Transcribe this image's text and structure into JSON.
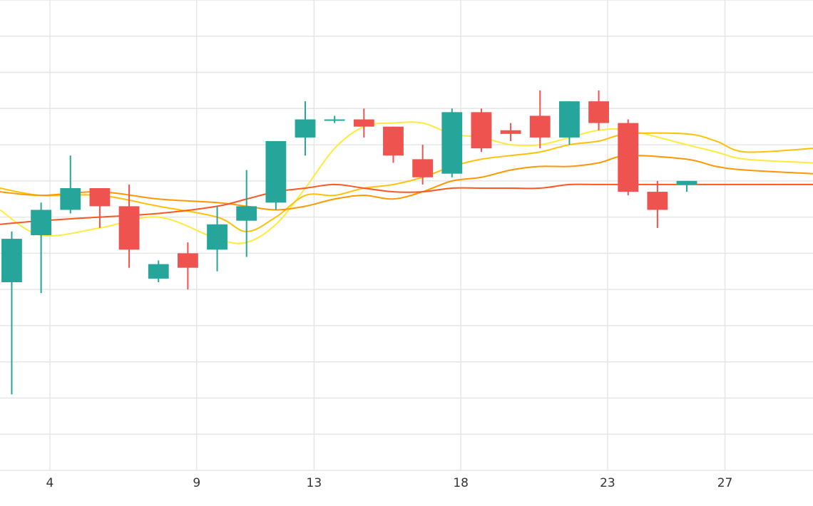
{
  "chart_data": {
    "type": "candlestick",
    "x_tick_labels": [
      "4",
      "9",
      "13",
      "18",
      "23",
      "27"
    ],
    "x_ticks": [
      4,
      9,
      13,
      18,
      23,
      27
    ],
    "xlim": [
      2.3,
      30.0
    ],
    "ylim": [
      0,
      13
    ],
    "grid": true,
    "legend": "none",
    "colors": {
      "up": "#26a69a",
      "down": "#ef5350",
      "grid": "#e6e6e6",
      "axis_text": "#333333"
    },
    "candles": [
      {
        "x": 2.7,
        "open": 5.2,
        "high": 6.6,
        "low": 2.1,
        "close": 6.4
      },
      {
        "x": 3.7,
        "open": 6.5,
        "high": 7.4,
        "low": 4.9,
        "close": 7.2
      },
      {
        "x": 4.7,
        "open": 7.2,
        "high": 8.7,
        "low": 7.1,
        "close": 7.8
      },
      {
        "x": 5.7,
        "open": 7.8,
        "high": 7.8,
        "low": 6.7,
        "close": 7.3
      },
      {
        "x": 6.7,
        "open": 7.3,
        "high": 7.9,
        "low": 5.6,
        "close": 6.1
      },
      {
        "x": 7.7,
        "open": 5.3,
        "high": 5.8,
        "low": 5.2,
        "close": 5.7
      },
      {
        "x": 8.7,
        "open": 6.0,
        "high": 6.3,
        "low": 5.0,
        "close": 5.6
      },
      {
        "x": 9.7,
        "open": 6.1,
        "high": 7.3,
        "low": 5.5,
        "close": 6.8
      },
      {
        "x": 10.7,
        "open": 6.9,
        "high": 8.3,
        "low": 5.9,
        "close": 7.3
      },
      {
        "x": 11.7,
        "open": 7.4,
        "high": 9.1,
        "low": 7.2,
        "close": 9.1
      },
      {
        "x": 12.7,
        "open": 9.2,
        "high": 10.2,
        "low": 8.7,
        "close": 9.7
      },
      {
        "x": 13.7,
        "open": 9.7,
        "high": 9.8,
        "low": 9.6,
        "close": 9.7
      },
      {
        "x": 14.7,
        "open": 9.7,
        "high": 10.0,
        "low": 9.2,
        "close": 9.5
      },
      {
        "x": 15.7,
        "open": 9.5,
        "high": 9.5,
        "low": 8.5,
        "close": 8.7
      },
      {
        "x": 16.7,
        "open": 8.6,
        "high": 9.0,
        "low": 7.9,
        "close": 8.1
      },
      {
        "x": 17.7,
        "open": 8.2,
        "high": 10.0,
        "low": 8.1,
        "close": 9.9
      },
      {
        "x": 18.7,
        "open": 9.9,
        "high": 10.0,
        "low": 8.8,
        "close": 8.9
      },
      {
        "x": 19.7,
        "open": 9.4,
        "high": 9.6,
        "low": 9.1,
        "close": 9.3
      },
      {
        "x": 20.7,
        "open": 9.8,
        "high": 10.5,
        "low": 8.9,
        "close": 9.2
      },
      {
        "x": 21.7,
        "open": 9.2,
        "high": 10.2,
        "low": 9.0,
        "close": 10.2
      },
      {
        "x": 22.7,
        "open": 10.2,
        "high": 10.5,
        "low": 9.4,
        "close": 9.6
      },
      {
        "x": 23.7,
        "open": 9.6,
        "high": 9.7,
        "low": 7.6,
        "close": 7.7
      },
      {
        "x": 24.7,
        "open": 7.7,
        "high": 8.0,
        "low": 6.7,
        "close": 7.2
      },
      {
        "x": 25.7,
        "open": 7.9,
        "high": 8.0,
        "low": 7.7,
        "close": 8.0
      }
    ],
    "series": [
      {
        "color": "#ffeb3b",
        "x": [
          2.3,
          3.7,
          5.7,
          7.7,
          9.7,
          10.7,
          11.7,
          12.7,
          13.7,
          14.7,
          15.7,
          16.7,
          17.7,
          18.7,
          19.7,
          20.7,
          21.7,
          22.7,
          23.7,
          25.7,
          26.7,
          27.7,
          30.0
        ],
        "y": [
          7.2,
          6.5,
          6.7,
          7.0,
          6.4,
          6.3,
          6.8,
          7.8,
          8.9,
          9.5,
          9.6,
          9.6,
          9.3,
          9.2,
          9.0,
          9.0,
          9.2,
          9.4,
          9.4,
          9.0,
          8.8,
          8.6,
          8.5
        ]
      },
      {
        "color": "#ffc107",
        "x": [
          2.3,
          3.7,
          5.7,
          7.7,
          9.7,
          10.7,
          11.7,
          12.7,
          13.7,
          14.7,
          15.7,
          16.7,
          17.7,
          18.7,
          19.7,
          20.7,
          21.7,
          22.7,
          23.7,
          25.7,
          26.7,
          27.7,
          30.0
        ],
        "y": [
          7.8,
          7.6,
          7.6,
          7.3,
          7.0,
          6.6,
          7.0,
          7.6,
          7.6,
          7.8,
          7.9,
          8.1,
          8.4,
          8.6,
          8.7,
          8.8,
          9.0,
          9.1,
          9.3,
          9.3,
          9.1,
          8.8,
          8.9
        ]
      },
      {
        "color": "#ff9800",
        "x": [
          2.3,
          3.7,
          5.7,
          7.7,
          9.7,
          10.7,
          11.7,
          12.7,
          13.7,
          14.7,
          15.7,
          16.7,
          17.7,
          18.7,
          19.7,
          20.7,
          21.7,
          22.7,
          23.7,
          25.7,
          26.7,
          27.7,
          30.0
        ],
        "y": [
          7.7,
          7.6,
          7.7,
          7.5,
          7.4,
          7.3,
          7.2,
          7.3,
          7.5,
          7.6,
          7.5,
          7.7,
          8.0,
          8.1,
          8.3,
          8.4,
          8.4,
          8.5,
          8.7,
          8.6,
          8.4,
          8.3,
          8.2
        ]
      },
      {
        "color": "#ff5722",
        "x": [
          2.3,
          3.7,
          5.7,
          7.7,
          9.7,
          10.7,
          11.7,
          12.7,
          13.7,
          14.7,
          15.7,
          16.7,
          17.7,
          18.7,
          19.7,
          20.7,
          21.7,
          22.7,
          23.7,
          25.7,
          26.7,
          27.7,
          30.0
        ],
        "y": [
          6.8,
          6.9,
          7.0,
          7.1,
          7.3,
          7.5,
          7.7,
          7.8,
          7.9,
          7.8,
          7.7,
          7.7,
          7.8,
          7.8,
          7.8,
          7.8,
          7.9,
          7.9,
          7.9,
          7.9,
          7.9,
          7.9,
          7.9
        ]
      }
    ]
  }
}
